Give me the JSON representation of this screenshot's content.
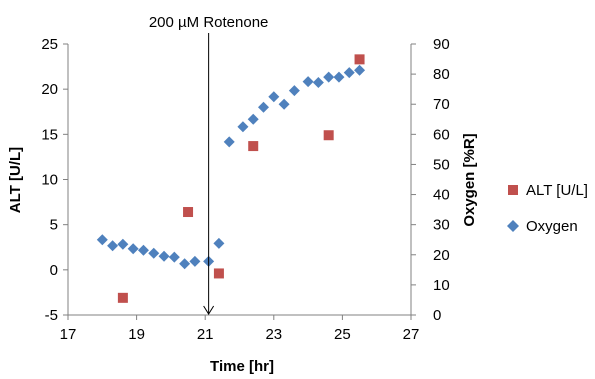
{
  "chart_data": {
    "type": "scatter",
    "xlabel": "Time [hr]",
    "ylabel_left": "ALT [U/L]",
    "ylabel_right": "Oxygen [%R]",
    "xlim": [
      17,
      27
    ],
    "xticks": [
      17,
      19,
      21,
      23,
      25,
      27
    ],
    "ylim_left": [
      -5,
      25
    ],
    "yticks_left": [
      -5,
      0,
      5,
      10,
      15,
      20,
      25
    ],
    "ylim_right": [
      0,
      90
    ],
    "yticks_right": [
      0,
      10,
      20,
      30,
      40,
      50,
      60,
      70,
      80,
      90
    ],
    "grid": false,
    "legend_position": "right",
    "annotation": {
      "text": "200 µM Rotenone",
      "x": 21.1
    },
    "series": [
      {
        "name": "ALT [U/L]",
        "axis": "left",
        "marker": "square",
        "color": "#c0504d",
        "points": [
          {
            "x": 18.6,
            "y": -3.1
          },
          {
            "x": 20.5,
            "y": 6.4
          },
          {
            "x": 21.4,
            "y": -0.4
          },
          {
            "x": 22.4,
            "y": 13.7
          },
          {
            "x": 24.6,
            "y": 14.9
          },
          {
            "x": 25.5,
            "y": 23.3
          }
        ]
      },
      {
        "name": "Oxygen",
        "axis": "right",
        "marker": "diamond",
        "color": "#4f81bd",
        "points": [
          {
            "x": 18.0,
            "y": 25
          },
          {
            "x": 18.3,
            "y": 23
          },
          {
            "x": 18.6,
            "y": 23.5
          },
          {
            "x": 18.9,
            "y": 22
          },
          {
            "x": 19.2,
            "y": 21.5
          },
          {
            "x": 19.5,
            "y": 20.5
          },
          {
            "x": 19.8,
            "y": 19.5
          },
          {
            "x": 20.1,
            "y": 19.2
          },
          {
            "x": 20.4,
            "y": 17
          },
          {
            "x": 20.7,
            "y": 17.8
          },
          {
            "x": 21.1,
            "y": 17.8
          },
          {
            "x": 21.4,
            "y": 23.8
          },
          {
            "x": 21.7,
            "y": 57.5
          },
          {
            "x": 22.1,
            "y": 62.5
          },
          {
            "x": 22.4,
            "y": 65
          },
          {
            "x": 22.7,
            "y": 69
          },
          {
            "x": 23.0,
            "y": 72.5
          },
          {
            "x": 23.3,
            "y": 70
          },
          {
            "x": 23.6,
            "y": 74.5
          },
          {
            "x": 24.0,
            "y": 77.5
          },
          {
            "x": 24.3,
            "y": 77.2
          },
          {
            "x": 24.6,
            "y": 79
          },
          {
            "x": 24.9,
            "y": 79
          },
          {
            "x": 25.2,
            "y": 80.5
          },
          {
            "x": 25.5,
            "y": 81.3
          }
        ]
      }
    ]
  }
}
